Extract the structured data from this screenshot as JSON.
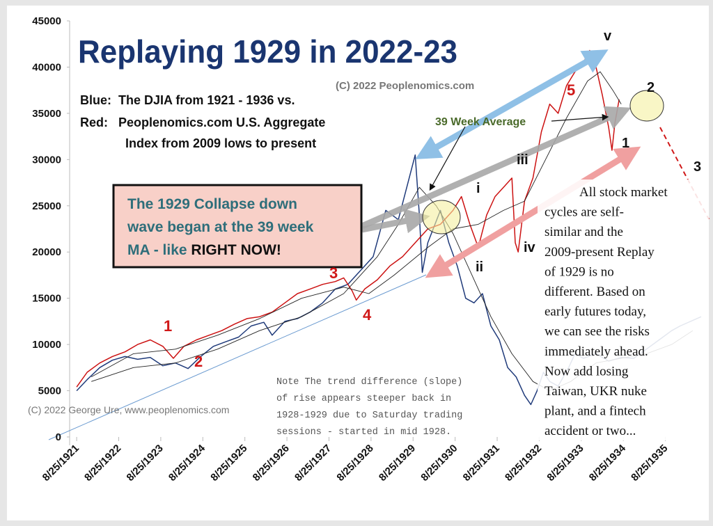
{
  "chart_data": {
    "type": "line",
    "title": "Replaying 1929 in 2022-23",
    "copyright": "(C) 2022 Peoplenomics.com",
    "credit": "(C) 2022 George Ure, www.peoplenomics.com",
    "legend_text": [
      {
        "key": "Blue:",
        "key_color": "#6aa8d8",
        "lines": [
          "The DJIA from 1921 - 1936 vs."
        ]
      },
      {
        "key": "Red:",
        "key_color": "#d01818",
        "lines": [
          "Peoplenomics.com  U.S. Aggregate",
          "Index from 2009 lows to present"
        ]
      }
    ],
    "box_text": [
      "The 1929 Collapse down",
      "wave began at the 39 week",
      "MA - like",
      "RIGHT NOW!"
    ],
    "ma_label": "39 Week Average",
    "wave_labels_red": [
      "1",
      "2",
      "3",
      "4",
      "5"
    ],
    "wave_labels_black": [
      "i",
      "ii",
      "iii",
      "iv",
      "v",
      "1",
      "2",
      "3"
    ],
    "note": [
      "Note The trend difference (slope)",
      "of rise appears steeper back in",
      "1928-1929 due to Saturday trading",
      "sessions - started in mid 1928."
    ],
    "commentary": [
      "All stock market",
      "cycles are self-",
      "similar and the",
      "2009-present Replay",
      "of 1929 is no",
      "different.  Based on",
      "early futures today,",
      "we can see the risks",
      "immediately ahead.",
      "Now add losing",
      "Taiwan, UKR nuke",
      "plant, and a fintech",
      "accident or two..."
    ],
    "xlim": [
      1921.4,
      1936.6
    ],
    "xticks": [
      {
        "value": 1921.65,
        "label": "8/25/1921"
      },
      {
        "value": 1922.65,
        "label": "8/25/1922"
      },
      {
        "value": 1923.65,
        "label": "8/25/1923"
      },
      {
        "value": 1924.65,
        "label": "8/25/1924"
      },
      {
        "value": 1925.65,
        "label": "8/25/1925"
      },
      {
        "value": 1926.65,
        "label": "8/25/1926"
      },
      {
        "value": 1927.65,
        "label": "8/25/1927"
      },
      {
        "value": 1928.65,
        "label": "8/25/1928"
      },
      {
        "value": 1929.65,
        "label": "8/25/1929"
      },
      {
        "value": 1930.65,
        "label": "8/25/1930"
      },
      {
        "value": 1931.65,
        "label": "8/25/1931"
      },
      {
        "value": 1932.65,
        "label": "8/25/1932"
      },
      {
        "value": 1933.65,
        "label": "8/25/1933"
      },
      {
        "value": 1934.65,
        "label": "8/25/1934"
      },
      {
        "value": 1935.65,
        "label": "8/25/1935"
      }
    ],
    "ylim": [
      0,
      45000
    ],
    "yticks": [
      0,
      5000,
      10000,
      15000,
      20000,
      25000,
      30000,
      35000,
      40000,
      45000
    ],
    "series": [
      {
        "color": "#1f3a7a",
        "width": 1.5,
        "x": [
          1921.65,
          1921.9,
          1922.2,
          1922.5,
          1922.8,
          1923.1,
          1923.4,
          1923.7,
          1924.0,
          1924.3,
          1924.6,
          1924.9,
          1925.2,
          1925.5,
          1925.8,
          1926.1,
          1926.3,
          1926.6,
          1926.9,
          1927.2,
          1927.5,
          1927.8,
          1928.1,
          1928.4,
          1928.7,
          1929.0,
          1929.3,
          1929.5,
          1929.7,
          1929.8,
          1929.87,
          1930.0,
          1930.3,
          1930.5,
          1930.7,
          1930.9,
          1931.1,
          1931.3,
          1931.5,
          1931.7,
          1931.9,
          1932.1,
          1932.3,
          1932.45,
          1932.6,
          1932.75,
          1932.9,
          1933.1,
          1933.35,
          1933.5,
          1933.7,
          1934.0,
          1934.3,
          1934.6,
          1934.9,
          1935.2,
          1935.5,
          1935.8,
          1936.0,
          1936.5
        ],
        "values": [
          5000,
          6200,
          7500,
          8300,
          8700,
          8400,
          8600,
          7700,
          8000,
          7400,
          8700,
          9800,
          10300,
          10800,
          12000,
          12400,
          11000,
          12500,
          12800,
          13500,
          14500,
          16000,
          16500,
          18000,
          19500,
          24500,
          23500,
          27000,
          30500,
          24000,
          17800,
          21000,
          24500,
          21000,
          18500,
          15000,
          14500,
          15500,
          12000,
          10500,
          7500,
          6500,
          4500,
          3500,
          5000,
          7000,
          6000,
          5500,
          7500,
          9000,
          8500,
          9000,
          8200,
          8600,
          8500,
          9500,
          10500,
          11500,
          12000,
          13000
        ]
      },
      {
        "color": "#cc1111",
        "width": 1.5,
        "x": [
          1921.65,
          1921.9,
          1922.2,
          1922.5,
          1922.8,
          1923.1,
          1923.4,
          1923.7,
          1923.95,
          1924.2,
          1924.5,
          1924.8,
          1925.1,
          1925.4,
          1925.7,
          1926.0,
          1926.3,
          1926.6,
          1926.9,
          1927.2,
          1927.5,
          1927.8,
          1928.0,
          1928.2,
          1928.3,
          1928.5,
          1928.8,
          1929.1,
          1929.4,
          1929.7,
          1930.0,
          1930.3,
          1930.6,
          1930.8,
          1931.0,
          1931.2,
          1931.4,
          1931.6,
          1931.8,
          1932.0,
          1932.08,
          1932.15,
          1932.3,
          1932.5,
          1932.7,
          1932.9,
          1933.1,
          1933.3,
          1933.5,
          1933.7,
          1933.85,
          1934.0,
          1934.15,
          1934.3,
          1934.38,
          1934.45,
          1934.55
        ],
        "values": [
          5400,
          7000,
          8000,
          8700,
          9200,
          10000,
          10500,
          9800,
          8500,
          9800,
          10500,
          11000,
          11500,
          12200,
          12800,
          13000,
          13500,
          14500,
          15500,
          16000,
          16500,
          16800,
          17200,
          15800,
          14800,
          16000,
          17000,
          18500,
          19500,
          21000,
          22500,
          23000,
          24500,
          26000,
          23000,
          20500,
          24000,
          26000,
          27000,
          28000,
          21000,
          20000,
          25500,
          28000,
          33000,
          36000,
          35000,
          38000,
          39500,
          40500,
          41800,
          40000,
          37000,
          33500,
          31000,
          34000,
          36500
        ]
      },
      {
        "color": "#222222",
        "width": 0.9,
        "x": [
          1922.0,
          1923.0,
          1924.0,
          1925.0,
          1926.0,
          1927.0,
          1928.0,
          1928.8,
          1929.3,
          1929.8,
          1930.2,
          1930.6,
          1931.0,
          1931.5,
          1932.0,
          1932.5,
          1932.9,
          1933.4,
          1934.0,
          1934.6,
          1935.2,
          1935.8,
          1936.3
        ],
        "values": [
          6000,
          7500,
          8000,
          9500,
          11500,
          13000,
          15500,
          19500,
          23000,
          27000,
          25000,
          22000,
          18000,
          13000,
          9000,
          6000,
          5000,
          6000,
          8000,
          8500,
          9000,
          10000,
          11500
        ]
      },
      {
        "color": "#222222",
        "width": 0.9,
        "x": [
          1922.0,
          1923.0,
          1924.0,
          1925.0,
          1926.0,
          1927.0,
          1928.0,
          1928.6,
          1929.2,
          1930.0,
          1930.6,
          1931.2,
          1931.8,
          1932.3,
          1932.8,
          1933.3,
          1933.8,
          1934.1,
          1934.4,
          1934.6
        ],
        "values": [
          6500,
          9000,
          9500,
          11000,
          12800,
          15000,
          16200,
          15500,
          17500,
          20500,
          22500,
          23000,
          24500,
          25500,
          30000,
          34500,
          38500,
          39500,
          37500,
          36000
        ]
      }
    ]
  }
}
